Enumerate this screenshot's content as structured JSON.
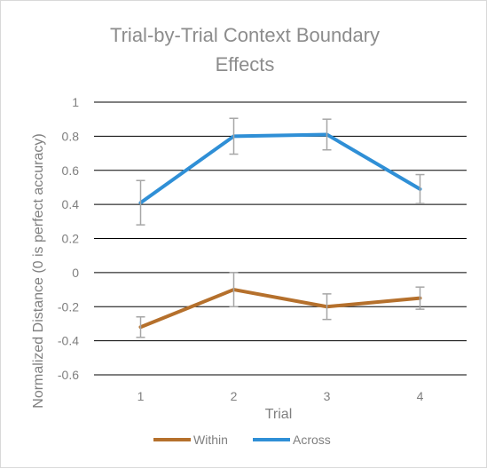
{
  "chart_data": {
    "type": "line",
    "title": "Trial-by-Trial Context Boundary Effects",
    "title_lines": [
      "Trial-by-Trial Context Boundary",
      "Effects"
    ],
    "xlabel": "Trial",
    "ylabel": "Normalized Distance (0 is perfect accuracy)",
    "categories": [
      "1",
      "2",
      "3",
      "4"
    ],
    "ylim": [
      -0.6,
      1
    ],
    "yticks": [
      1,
      0.8,
      0.6,
      0.4,
      0.2,
      0,
      -0.2,
      -0.4,
      -0.6
    ],
    "ytick_labels": [
      "1",
      "0.8",
      "0.6",
      "0.4",
      "0.2",
      "0",
      "-0.2",
      "-0.4",
      "-0.6"
    ],
    "grid": true,
    "legend_position": "bottom",
    "series": [
      {
        "name": "Within",
        "color": "#b5702c",
        "values": [
          -0.32,
          -0.1,
          -0.2,
          -0.15
        ],
        "error": [
          0.06,
          0.1,
          0.075,
          0.065
        ]
      },
      {
        "name": "Across",
        "color": "#2f8fd6",
        "values": [
          0.41,
          0.8,
          0.81,
          0.49
        ],
        "error": [
          0.13,
          0.105,
          0.09,
          0.085
        ]
      }
    ],
    "errorbar_color": "#a6a6a6"
  }
}
